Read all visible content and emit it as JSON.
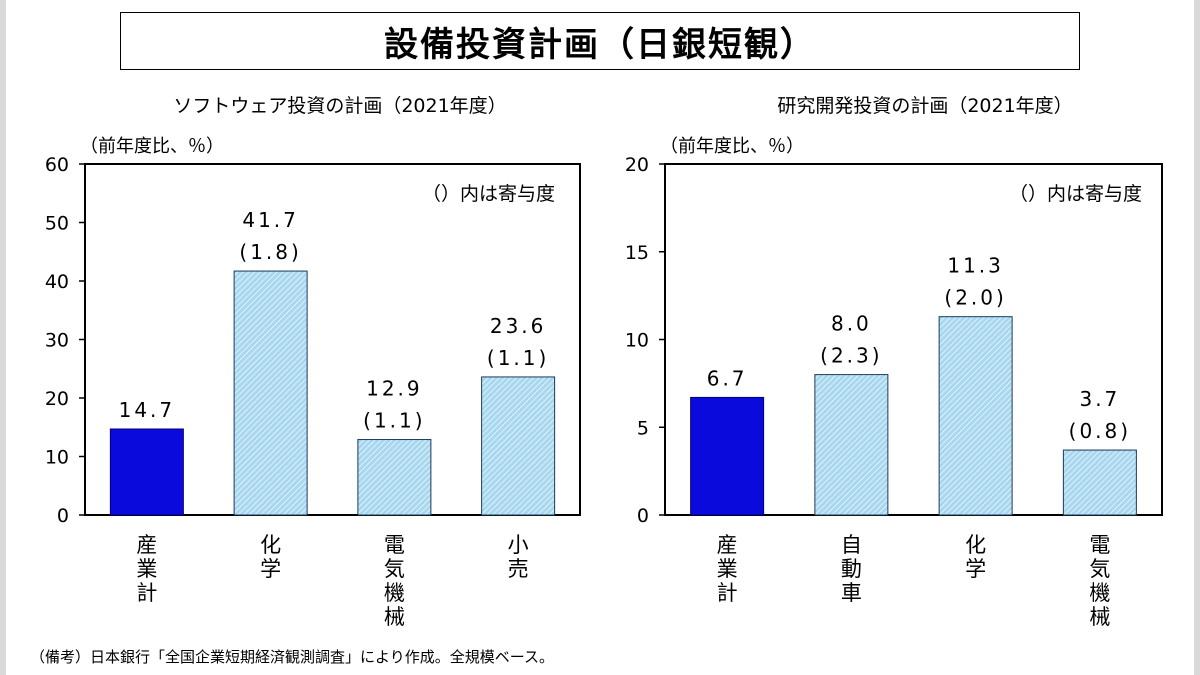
{
  "page": {
    "title": "設備投資計画（日銀短観）",
    "note": "（備考）日本銀行「全国企業短期経済観測調査」により作成。全規模ベース。"
  },
  "colors": {
    "highlight_bar": "#0a0adc",
    "hatch_fill": "#a8d8f0",
    "hatch_line": "#ffffff",
    "axis": "#000000"
  },
  "chart_data": [
    {
      "type": "bar",
      "title": "ソフトウェア投資の計画（2021年度）",
      "ylabel": "（前年度比、％）",
      "annotation": "（）内は寄与度",
      "ylim": [
        0,
        60
      ],
      "yticks": [
        0,
        10,
        20,
        30,
        40,
        50,
        60
      ],
      "categories": [
        "産業計",
        "化学",
        "電気機械",
        "小売"
      ],
      "values": [
        14.7,
        41.7,
        12.9,
        23.6
      ],
      "value_labels": [
        "14.7",
        "41.7",
        "12.9",
        "23.6"
      ],
      "contribution_labels": [
        "",
        "(1.8)",
        "(1.1)",
        "(1.1)"
      ],
      "highlight": [
        true,
        false,
        false,
        false
      ]
    },
    {
      "type": "bar",
      "title": "研究開発投資の計画（2021年度）",
      "ylabel": "（前年度比、％）",
      "annotation": "（）内は寄与度",
      "ylim": [
        0,
        20
      ],
      "yticks": [
        0,
        5,
        10,
        15,
        20
      ],
      "categories": [
        "産業計",
        "自動車",
        "化学",
        "電気機械"
      ],
      "values": [
        6.7,
        8.0,
        11.3,
        3.7
      ],
      "value_labels": [
        "6.7",
        "8.0",
        "11.3",
        "3.7"
      ],
      "contribution_labels": [
        "",
        "(2.3)",
        "(2.0)",
        "(0.8)"
      ],
      "highlight": [
        true,
        false,
        false,
        false
      ]
    }
  ]
}
